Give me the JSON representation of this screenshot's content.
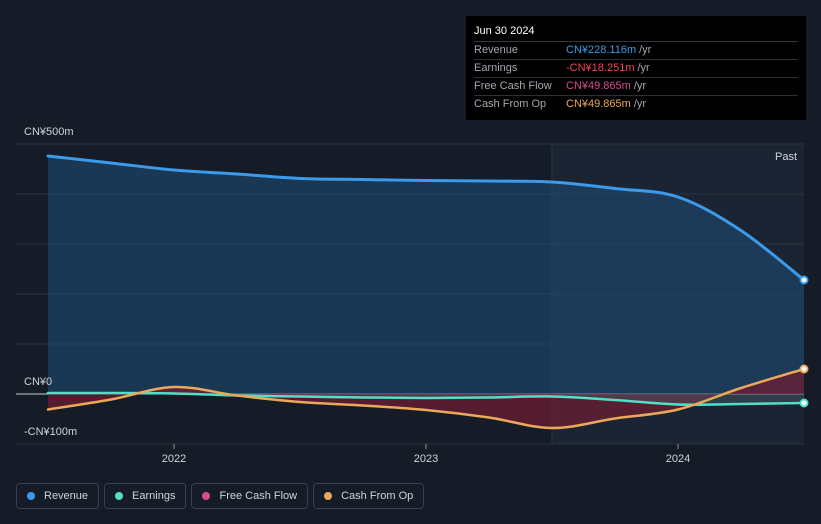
{
  "tooltip": {
    "date": "Jun 30 2024",
    "rows": [
      {
        "label": "Revenue",
        "value": "CN¥228.116m",
        "unit": "/yr",
        "color": "#3b9bea"
      },
      {
        "label": "Earnings",
        "value": "-CN¥18.251m",
        "unit": "/yr",
        "color": "#f0475d"
      },
      {
        "label": "Free Cash Flow",
        "value": "CN¥49.865m",
        "unit": "/yr",
        "color": "#d44f8e"
      },
      {
        "label": "Cash From Op",
        "value": "CN¥49.865m",
        "unit": "/yr",
        "color": "#e9a85a"
      }
    ]
  },
  "legend": [
    {
      "label": "Revenue",
      "color": "#3b9bea"
    },
    {
      "label": "Earnings",
      "color": "#4fe0c6"
    },
    {
      "label": "Free Cash Flow",
      "color": "#d44f8e"
    },
    {
      "label": "Cash From Op",
      "color": "#e9a85a"
    }
  ],
  "chart_data": {
    "type": "line",
    "y_tick_labels": [
      "CN¥500m",
      "CN¥0",
      "-CN¥100m"
    ],
    "ylim": [
      -100,
      500
    ],
    "x_tick_labels": [
      "2022",
      "2023",
      "2024"
    ],
    "x_ticks": [
      2022.0,
      2023.0,
      2024.0
    ],
    "xlim": [
      2021.5,
      2024.5
    ],
    "past_label": "Past",
    "past_start": 2023.5,
    "grid": true,
    "series": [
      {
        "name": "Revenue",
        "color": "#3b9bea",
        "x": [
          2021.5,
          2021.75,
          2022.0,
          2022.25,
          2022.5,
          2022.75,
          2023.0,
          2023.25,
          2023.5,
          2023.75,
          2024.0,
          2024.25,
          2024.5
        ],
        "y": [
          476,
          462,
          448,
          440,
          431,
          429,
          427,
          426,
          424,
          411,
          394,
          327,
          228
        ]
      },
      {
        "name": "Earnings",
        "color": "#4fe0c6",
        "x": [
          2021.5,
          2021.75,
          2022.0,
          2022.25,
          2022.5,
          2022.75,
          2023.0,
          2023.25,
          2023.5,
          2023.75,
          2024.0,
          2024.25,
          2024.5
        ],
        "y": [
          2,
          2,
          1,
          -3,
          -5,
          -7,
          -8,
          -7,
          -5,
          -12,
          -21,
          -20,
          -18
        ]
      },
      {
        "name": "Free Cash Flow",
        "color": "#d44f8e",
        "x": [
          2021.5,
          2021.75,
          2022.0,
          2022.25,
          2022.5,
          2022.75,
          2023.0,
          2023.25,
          2023.5,
          2023.75,
          2024.0,
          2024.25,
          2024.5
        ],
        "y": [
          -31,
          -11,
          14,
          -3,
          -16,
          -23,
          -32,
          -47,
          -68,
          -49,
          -31,
          12,
          50
        ]
      },
      {
        "name": "Cash From Op",
        "color": "#e9a85a",
        "x": [
          2021.5,
          2021.75,
          2022.0,
          2022.25,
          2022.5,
          2022.75,
          2023.0,
          2023.25,
          2023.5,
          2023.75,
          2024.0,
          2024.25,
          2024.5
        ],
        "y": [
          -31,
          -11,
          14,
          -3,
          -16,
          -23,
          -32,
          -47,
          -68,
          -49,
          -31,
          12,
          50
        ]
      }
    ]
  }
}
